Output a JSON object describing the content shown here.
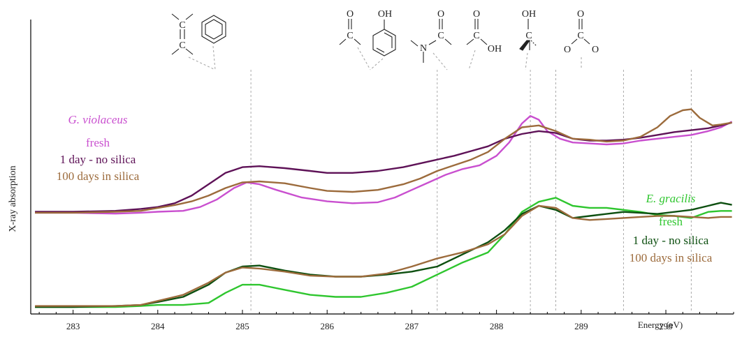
{
  "chart_data": {
    "type": "line",
    "title": "",
    "xlabel": "Energy (eV)",
    "ylabel": "X-ray absorption",
    "xlim": [
      282.5,
      290.8
    ],
    "ylim": [
      0,
      1
    ],
    "grid": false,
    "x_ticks": [
      283,
      284,
      285,
      286,
      287,
      288,
      289,
      290
    ],
    "annotation_lines": [
      285.1,
      287.3,
      288.4,
      288.7,
      289.5,
      290.3
    ],
    "groups": [
      {
        "name": "G. violaceus",
        "color": "#c94fcf",
        "legend_position": "middle-left",
        "series": [
          {
            "name": "fresh",
            "color": "#c94fcf",
            "points": [
              [
                282.55,
                0.21
              ],
              [
                283,
                0.21
              ],
              [
                283.5,
                0.205
              ],
              [
                283.8,
                0.21
              ],
              [
                284,
                0.215
              ],
              [
                284.3,
                0.22
              ],
              [
                284.5,
                0.24
              ],
              [
                284.7,
                0.28
              ],
              [
                284.9,
                0.34
              ],
              [
                285.05,
                0.37
              ],
              [
                285.2,
                0.36
              ],
              [
                285.4,
                0.33
              ],
              [
                285.7,
                0.29
              ],
              [
                286,
                0.27
              ],
              [
                286.3,
                0.26
              ],
              [
                286.6,
                0.265
              ],
              [
                286.8,
                0.29
              ],
              [
                287,
                0.33
              ],
              [
                287.2,
                0.37
              ],
              [
                287.4,
                0.41
              ],
              [
                287.6,
                0.44
              ],
              [
                287.8,
                0.46
              ],
              [
                288,
                0.51
              ],
              [
                288.15,
                0.58
              ],
              [
                288.3,
                0.68
              ],
              [
                288.4,
                0.72
              ],
              [
                288.5,
                0.7
              ],
              [
                288.6,
                0.64
              ],
              [
                288.75,
                0.6
              ],
              [
                288.9,
                0.58
              ],
              [
                289.1,
                0.575
              ],
              [
                289.3,
                0.57
              ],
              [
                289.5,
                0.575
              ],
              [
                289.7,
                0.59
              ],
              [
                289.9,
                0.6
              ],
              [
                290.1,
                0.61
              ],
              [
                290.3,
                0.62
              ],
              [
                290.5,
                0.64
              ],
              [
                290.65,
                0.66
              ],
              [
                290.78,
                0.69
              ]
            ]
          },
          {
            "name": "1 day - no silica",
            "color": "#5e1257",
            "points": [
              [
                282.55,
                0.215
              ],
              [
                283,
                0.215
              ],
              [
                283.5,
                0.22
              ],
              [
                283.8,
                0.23
              ],
              [
                284,
                0.24
              ],
              [
                284.2,
                0.26
              ],
              [
                284.4,
                0.3
              ],
              [
                284.6,
                0.36
              ],
              [
                284.8,
                0.42
              ],
              [
                285,
                0.45
              ],
              [
                285.2,
                0.455
              ],
              [
                285.5,
                0.445
              ],
              [
                285.8,
                0.43
              ],
              [
                286,
                0.42
              ],
              [
                286.3,
                0.42
              ],
              [
                286.6,
                0.43
              ],
              [
                286.9,
                0.45
              ],
              [
                287.2,
                0.48
              ],
              [
                287.5,
                0.51
              ],
              [
                287.7,
                0.535
              ],
              [
                287.9,
                0.56
              ],
              [
                288.1,
                0.6
              ],
              [
                288.3,
                0.625
              ],
              [
                288.5,
                0.64
              ],
              [
                288.7,
                0.63
              ],
              [
                288.9,
                0.6
              ],
              [
                289.1,
                0.59
              ],
              [
                289.3,
                0.59
              ],
              [
                289.5,
                0.595
              ],
              [
                289.7,
                0.605
              ],
              [
                289.9,
                0.62
              ],
              [
                290.1,
                0.635
              ],
              [
                290.3,
                0.645
              ],
              [
                290.5,
                0.655
              ],
              [
                290.65,
                0.67
              ],
              [
                290.78,
                0.685
              ]
            ]
          },
          {
            "name": "100 days in silica",
            "color": "#9c6b3c",
            "points": [
              [
                282.55,
                0.21
              ],
              [
                283,
                0.21
              ],
              [
                283.5,
                0.215
              ],
              [
                283.8,
                0.22
              ],
              [
                284,
                0.235
              ],
              [
                284.2,
                0.25
              ],
              [
                284.4,
                0.27
              ],
              [
                284.6,
                0.3
              ],
              [
                284.8,
                0.34
              ],
              [
                285,
                0.37
              ],
              [
                285.2,
                0.375
              ],
              [
                285.5,
                0.365
              ],
              [
                285.8,
                0.34
              ],
              [
                286,
                0.325
              ],
              [
                286.3,
                0.32
              ],
              [
                286.6,
                0.33
              ],
              [
                286.9,
                0.36
              ],
              [
                287.1,
                0.39
              ],
              [
                287.3,
                0.43
              ],
              [
                287.5,
                0.46
              ],
              [
                287.7,
                0.49
              ],
              [
                287.9,
                0.53
              ],
              [
                288.1,
                0.6
              ],
              [
                288.3,
                0.66
              ],
              [
                288.5,
                0.67
              ],
              [
                288.7,
                0.64
              ],
              [
                288.9,
                0.6
              ],
              [
                289.1,
                0.595
              ],
              [
                289.3,
                0.585
              ],
              [
                289.5,
                0.59
              ],
              [
                289.7,
                0.61
              ],
              [
                289.9,
                0.66
              ],
              [
                290.05,
                0.72
              ],
              [
                290.2,
                0.75
              ],
              [
                290.3,
                0.755
              ],
              [
                290.4,
                0.71
              ],
              [
                290.55,
                0.67
              ],
              [
                290.65,
                0.675
              ],
              [
                290.78,
                0.685
              ]
            ]
          }
        ]
      },
      {
        "name": "E. gracilis",
        "color": "#2fc62f",
        "legend_position": "bottom-right",
        "series": [
          {
            "name": "fresh",
            "color": "#2fc62f",
            "points": [
              [
                282.55,
                0.0
              ],
              [
                283,
                0.0
              ],
              [
                283.5,
                0.0
              ],
              [
                283.8,
                0.005
              ],
              [
                284,
                0.01
              ],
              [
                284.3,
                0.01
              ],
              [
                284.6,
                0.02
              ],
              [
                284.8,
                0.07
              ],
              [
                285,
                0.11
              ],
              [
                285.2,
                0.11
              ],
              [
                285.5,
                0.085
              ],
              [
                285.8,
                0.06
              ],
              [
                286.1,
                0.05
              ],
              [
                286.4,
                0.05
              ],
              [
                286.7,
                0.07
              ],
              [
                287,
                0.1
              ],
              [
                287.3,
                0.16
              ],
              [
                287.6,
                0.22
              ],
              [
                287.9,
                0.27
              ],
              [
                288.1,
                0.36
              ],
              [
                288.3,
                0.47
              ],
              [
                288.5,
                0.52
              ],
              [
                288.7,
                0.54
              ],
              [
                288.9,
                0.5
              ],
              [
                289.1,
                0.49
              ],
              [
                289.3,
                0.49
              ],
              [
                289.5,
                0.48
              ],
              [
                289.7,
                0.47
              ],
              [
                289.9,
                0.455
              ],
              [
                290.1,
                0.45
              ],
              [
                290.3,
                0.44
              ],
              [
                290.5,
                0.47
              ],
              [
                290.65,
                0.475
              ],
              [
                290.78,
                0.475
              ]
            ]
          },
          {
            "name": "1 day - no silica",
            "color": "#0d4f10",
            "points": [
              [
                282.55,
                0.0
              ],
              [
                283,
                0.0
              ],
              [
                283.5,
                0.005
              ],
              [
                283.8,
                0.01
              ],
              [
                284,
                0.025
              ],
              [
                284.3,
                0.05
              ],
              [
                284.6,
                0.11
              ],
              [
                284.8,
                0.17
              ],
              [
                285,
                0.2
              ],
              [
                285.2,
                0.205
              ],
              [
                285.5,
                0.18
              ],
              [
                285.8,
                0.16
              ],
              [
                286.1,
                0.15
              ],
              [
                286.4,
                0.15
              ],
              [
                286.7,
                0.16
              ],
              [
                287,
                0.175
              ],
              [
                287.3,
                0.2
              ],
              [
                287.6,
                0.26
              ],
              [
                287.9,
                0.32
              ],
              [
                288.1,
                0.38
              ],
              [
                288.3,
                0.46
              ],
              [
                288.5,
                0.5
              ],
              [
                288.7,
                0.48
              ],
              [
                288.9,
                0.44
              ],
              [
                289.1,
                0.45
              ],
              [
                289.3,
                0.46
              ],
              [
                289.5,
                0.47
              ],
              [
                289.7,
                0.465
              ],
              [
                289.9,
                0.46
              ],
              [
                290.1,
                0.47
              ],
              [
                290.3,
                0.48
              ],
              [
                290.5,
                0.5
              ],
              [
                290.65,
                0.515
              ],
              [
                290.78,
                0.505
              ]
            ]
          },
          {
            "name": "100 days in silica",
            "color": "#9c6b3c",
            "points": [
              [
                282.55,
                0.005
              ],
              [
                283,
                0.005
              ],
              [
                283.5,
                0.005
              ],
              [
                283.8,
                0.01
              ],
              [
                284,
                0.03
              ],
              [
                284.3,
                0.06
              ],
              [
                284.6,
                0.12
              ],
              [
                284.8,
                0.17
              ],
              [
                285,
                0.195
              ],
              [
                285.2,
                0.19
              ],
              [
                285.5,
                0.175
              ],
              [
                285.8,
                0.155
              ],
              [
                286.1,
                0.15
              ],
              [
                286.4,
                0.15
              ],
              [
                286.7,
                0.165
              ],
              [
                287,
                0.2
              ],
              [
                287.3,
                0.24
              ],
              [
                287.6,
                0.27
              ],
              [
                287.9,
                0.31
              ],
              [
                288.1,
                0.36
              ],
              [
                288.3,
                0.45
              ],
              [
                288.5,
                0.5
              ],
              [
                288.7,
                0.49
              ],
              [
                288.9,
                0.44
              ],
              [
                289.1,
                0.43
              ],
              [
                289.3,
                0.435
              ],
              [
                289.5,
                0.44
              ],
              [
                289.7,
                0.445
              ],
              [
                289.9,
                0.45
              ],
              [
                290.1,
                0.45
              ],
              [
                290.3,
                0.445
              ],
              [
                290.5,
                0.44
              ],
              [
                290.65,
                0.445
              ],
              [
                290.78,
                0.445
              ]
            ]
          }
        ]
      }
    ],
    "molecule_labels": {
      "m1": [
        "C",
        "C"
      ],
      "m2": [
        "O",
        "C"
      ],
      "m3": [
        "OH"
      ],
      "m4": [
        "O",
        "N",
        "C"
      ],
      "m5": [
        "O",
        "C",
        "OH"
      ],
      "m6": [
        "OH",
        "C"
      ],
      "m7": [
        "O",
        "C",
        "O",
        "O"
      ]
    }
  }
}
